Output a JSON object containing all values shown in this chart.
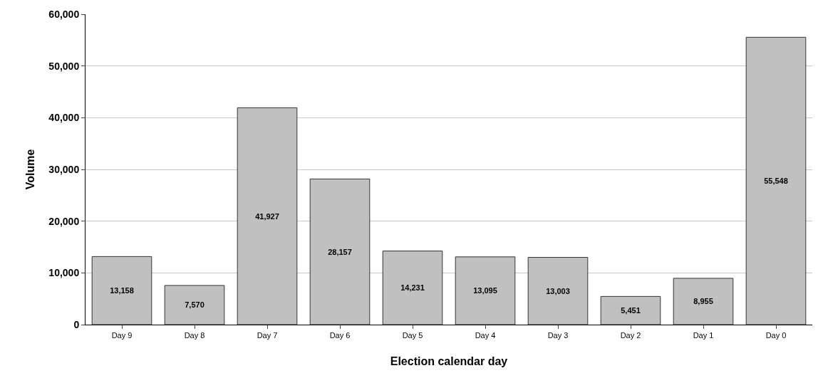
{
  "chart_data": {
    "type": "bar",
    "xlabel": "Election calendar day",
    "ylabel": "Volume",
    "categories": [
      "Day 9",
      "Day 8",
      "Day 7",
      "Day 6",
      "Day 5",
      "Day 4",
      "Day 3",
      "Day 2",
      "Day 1",
      "Day 0"
    ],
    "values": [
      13158,
      7570,
      41927,
      28157,
      14231,
      13095,
      13003,
      5451,
      8955,
      55548
    ],
    "color": "#c0c0c0",
    "ylim": [
      0,
      60000
    ],
    "yticks": [
      0,
      {
        "value": 10000,
        "label": "10,000"
      },
      {
        "value": 20000,
        "label": "20,000"
      },
      {
        "value": 30000,
        "label": "30,000"
      },
      {
        "value": 40000,
        "label": "40,000"
      },
      {
        "value": 50000,
        "label": "50,000"
      },
      {
        "value": 60000,
        "label": "60,000"
      }
    ],
    "value_labels": [
      "13,158",
      "7,570",
      "41,927",
      "28,157",
      "14,231",
      "13,095",
      "13,003",
      "5,451",
      "8,955",
      "55,548"
    ],
    "grid": "y"
  }
}
